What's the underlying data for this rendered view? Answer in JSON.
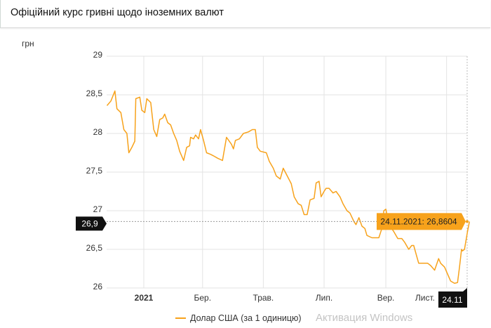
{
  "header": {
    "title": "Офіційний курс гривні щодо іноземних валют"
  },
  "watermark": "Активация Windows",
  "colors": {
    "series": "#f7a21b",
    "crosshair_label": "#111111",
    "grid": "#e3e3e3"
  },
  "chart_data": {
    "type": "line",
    "title": "",
    "ylabel": "грн",
    "xlabel": "",
    "ylim": [
      26,
      29
    ],
    "y_ticks": [
      {
        "value": 26,
        "label": "26"
      },
      {
        "value": 26.5,
        "label": "26,5"
      },
      {
        "value": 27,
        "label": "27"
      },
      {
        "value": 27.5,
        "label": "27,5"
      },
      {
        "value": 28,
        "label": "28"
      },
      {
        "value": 28.5,
        "label": "28,5"
      },
      {
        "value": 29,
        "label": "29"
      }
    ],
    "x_ticks": [
      {
        "date": "2021-01-01",
        "label": "2021",
        "bold": true
      },
      {
        "date": "2021-03-01",
        "label": "Бер."
      },
      {
        "date": "2021-05-01",
        "label": "Трав."
      },
      {
        "date": "2021-07-01",
        "label": "Лип."
      },
      {
        "date": "2021-09-01",
        "label": "Вер."
      },
      {
        "date": "2021-11-01",
        "label": "Лист."
      }
    ],
    "grid": true,
    "legend": "bottom",
    "series": [
      {
        "name": "Долар США (за 1 одиницю)",
        "points": [
          [
            "2020-11-25",
            28.36
          ],
          [
            "2020-11-29",
            28.42
          ],
          [
            "2020-12-03",
            28.55
          ],
          [
            "2020-12-05",
            28.32
          ],
          [
            "2020-12-09",
            28.27
          ],
          [
            "2020-12-12",
            28.05
          ],
          [
            "2020-12-15",
            28.0
          ],
          [
            "2020-12-17",
            27.75
          ],
          [
            "2020-12-20",
            27.82
          ],
          [
            "2020-12-23",
            27.9
          ],
          [
            "2020-12-24",
            28.45
          ],
          [
            "2020-12-28",
            28.47
          ],
          [
            "2020-12-30",
            28.3
          ],
          [
            "2021-01-02",
            28.27
          ],
          [
            "2021-01-04",
            28.45
          ],
          [
            "2021-01-08",
            28.4
          ],
          [
            "2021-01-11",
            28.05
          ],
          [
            "2021-01-14",
            27.96
          ],
          [
            "2021-01-17",
            28.18
          ],
          [
            "2021-01-20",
            28.2
          ],
          [
            "2021-01-22",
            28.25
          ],
          [
            "2021-01-25",
            28.14
          ],
          [
            "2021-01-28",
            28.11
          ],
          [
            "2021-01-31",
            28.0
          ],
          [
            "2021-02-03",
            27.91
          ],
          [
            "2021-02-06",
            27.77
          ],
          [
            "2021-02-10",
            27.65
          ],
          [
            "2021-02-13",
            27.82
          ],
          [
            "2021-02-16",
            27.84
          ],
          [
            "2021-02-17",
            27.95
          ],
          [
            "2021-02-20",
            27.93
          ],
          [
            "2021-02-22",
            27.98
          ],
          [
            "2021-02-25",
            27.93
          ],
          [
            "2021-02-27",
            28.05
          ],
          [
            "2021-03-02",
            27.91
          ],
          [
            "2021-03-05",
            27.75
          ],
          [
            "2021-03-09",
            27.73
          ],
          [
            "2021-03-12",
            27.71
          ],
          [
            "2021-03-16",
            27.68
          ],
          [
            "2021-03-21",
            27.65
          ],
          [
            "2021-03-25",
            27.95
          ],
          [
            "2021-03-30",
            27.86
          ],
          [
            "2021-04-01",
            27.8
          ],
          [
            "2021-04-03",
            27.91
          ],
          [
            "2021-04-07",
            27.93
          ],
          [
            "2021-04-11",
            28.0
          ],
          [
            "2021-04-16",
            28.02
          ],
          [
            "2021-04-20",
            28.05
          ],
          [
            "2021-04-23",
            28.05
          ],
          [
            "2021-04-25",
            27.82
          ],
          [
            "2021-04-28",
            27.77
          ],
          [
            "2021-05-04",
            27.75
          ],
          [
            "2021-05-07",
            27.64
          ],
          [
            "2021-05-11",
            27.55
          ],
          [
            "2021-05-14",
            27.45
          ],
          [
            "2021-05-18",
            27.41
          ],
          [
            "2021-05-21",
            27.55
          ],
          [
            "2021-05-25",
            27.45
          ],
          [
            "2021-05-29",
            27.35
          ],
          [
            "2021-06-01",
            27.18
          ],
          [
            "2021-06-05",
            27.09
          ],
          [
            "2021-06-08",
            27.07
          ],
          [
            "2021-06-11",
            26.95
          ],
          [
            "2021-06-14",
            26.95
          ],
          [
            "2021-06-17",
            27.14
          ],
          [
            "2021-06-21",
            27.16
          ],
          [
            "2021-06-23",
            27.36
          ],
          [
            "2021-06-26",
            27.38
          ],
          [
            "2021-06-28",
            27.18
          ],
          [
            "2021-07-01",
            27.25
          ],
          [
            "2021-07-03",
            27.29
          ],
          [
            "2021-07-06",
            27.29
          ],
          [
            "2021-07-10",
            27.23
          ],
          [
            "2021-07-13",
            27.25
          ],
          [
            "2021-07-17",
            27.18
          ],
          [
            "2021-07-20",
            27.09
          ],
          [
            "2021-07-24",
            27.0
          ],
          [
            "2021-07-27",
            26.97
          ],
          [
            "2021-07-31",
            26.86
          ],
          [
            "2021-08-02",
            26.82
          ],
          [
            "2021-08-05",
            26.91
          ],
          [
            "2021-08-08",
            26.8
          ],
          [
            "2021-08-11",
            26.77
          ],
          [
            "2021-08-13",
            26.68
          ],
          [
            "2021-08-18",
            26.65
          ],
          [
            "2021-08-25",
            26.65
          ],
          [
            "2021-08-28",
            26.77
          ],
          [
            "2021-08-30",
            27.0
          ],
          [
            "2021-09-01",
            27.02
          ],
          [
            "2021-09-04",
            26.82
          ],
          [
            "2021-09-09",
            26.73
          ],
          [
            "2021-09-13",
            26.64
          ],
          [
            "2021-09-17",
            26.64
          ],
          [
            "2021-09-20",
            26.59
          ],
          [
            "2021-09-24",
            26.5
          ],
          [
            "2021-09-27",
            26.55
          ],
          [
            "2021-09-29",
            26.55
          ],
          [
            "2021-10-02",
            26.41
          ],
          [
            "2021-10-04",
            26.32
          ],
          [
            "2021-10-08",
            26.32
          ],
          [
            "2021-10-13",
            26.32
          ],
          [
            "2021-10-16",
            26.29
          ],
          [
            "2021-10-20",
            26.23
          ],
          [
            "2021-10-24",
            26.38
          ],
          [
            "2021-10-26",
            26.32
          ],
          [
            "2021-10-30",
            26.27
          ],
          [
            "2021-11-02",
            26.18
          ],
          [
            "2021-11-05",
            26.09
          ],
          [
            "2021-11-09",
            26.06
          ],
          [
            "2021-11-12",
            26.07
          ],
          [
            "2021-11-14",
            26.27
          ],
          [
            "2021-11-16",
            26.5
          ],
          [
            "2021-11-17",
            26.48
          ],
          [
            "2021-11-19",
            26.5
          ],
          [
            "2021-11-22",
            26.73
          ],
          [
            "2021-11-24",
            26.8604
          ]
        ]
      }
    ],
    "tooltip": {
      "text": "24.11.2021: 26,8604"
    },
    "crosshair": {
      "y_label": "26,9",
      "x_label": "24.11"
    }
  }
}
